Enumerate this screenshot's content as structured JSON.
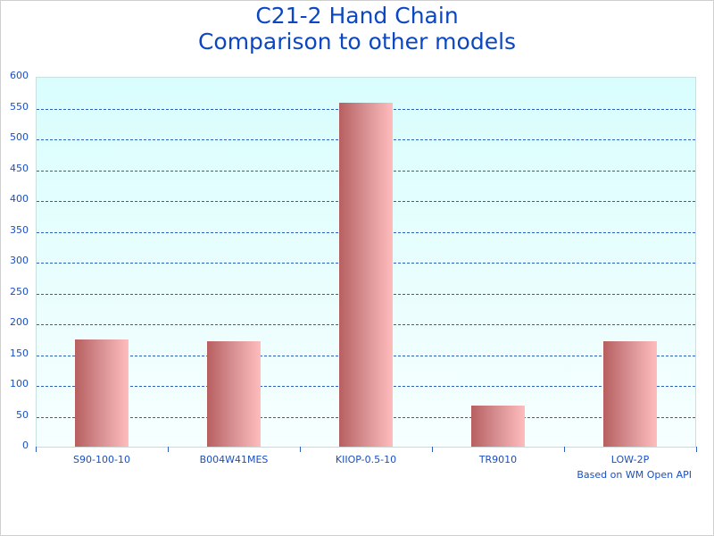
{
  "chart": {
    "title_line1": "C21-2 Hand Chain",
    "title_line2": "Comparison to other models",
    "credit": "Based on WM Open API",
    "y_ticks": [
      "600",
      "550",
      "500",
      "450",
      "400",
      "350",
      "300",
      "250",
      "200",
      "150",
      "100",
      "50",
      "0"
    ]
  },
  "colors": {
    "title": "#0b47c2",
    "axis_text": "#1a4fc0",
    "grid": "#2a5fc0",
    "plot_bg_top": "#d9fdfd",
    "bar_dark": "#b75f60",
    "bar_light": "#ffbcbd"
  },
  "chart_data": {
    "type": "bar",
    "title": "C21-2 Hand Chain Comparison to other models",
    "categories": [
      "S90-100-10",
      "B004W41MES",
      "KIIOP-0.5-10",
      "TR9010",
      "LOW-2P"
    ],
    "values": [
      174,
      171,
      558,
      67,
      171
    ],
    "xlabel": "",
    "ylabel": "",
    "ylim": [
      0,
      600
    ],
    "yticks": [
      0,
      50,
      100,
      150,
      200,
      250,
      300,
      350,
      400,
      450,
      500,
      550,
      600
    ],
    "grid": true,
    "legend": null,
    "annotations": [
      "Based on WM Open API"
    ]
  }
}
